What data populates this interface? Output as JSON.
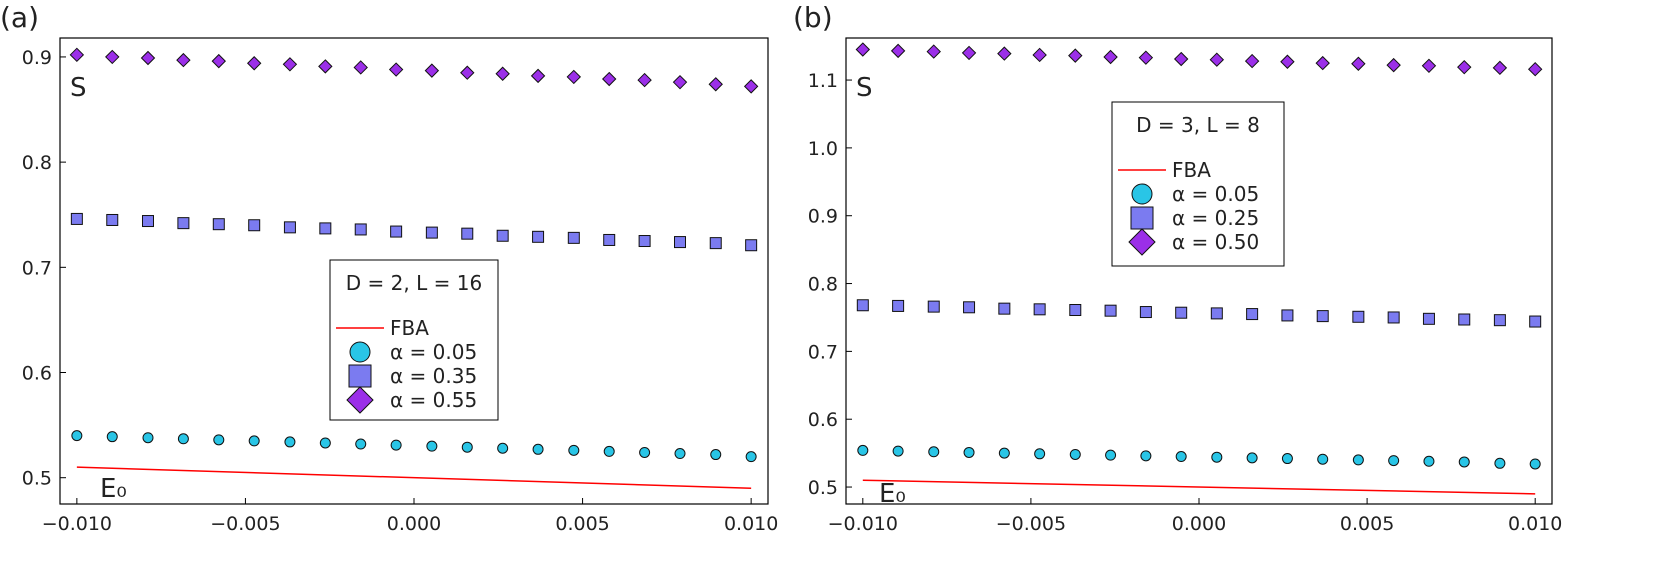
{
  "chart_data": [
    {
      "panel_label": "(a)",
      "type": "scatter",
      "annotations": {
        "ylabel": "S",
        "xlabel": "E₀"
      },
      "xlim": [
        -0.0105,
        0.0105
      ],
      "ylim": [
        0.475,
        0.918
      ],
      "xticks": [
        -0.01,
        -0.005,
        0.0,
        0.005,
        0.01
      ],
      "xtick_labels": [
        "−0.010",
        "−0.005",
        "0.000",
        "0.005",
        "0.010"
      ],
      "yticks": [
        0.5,
        0.6,
        0.7,
        0.8,
        0.9
      ],
      "ytick_labels": [
        "0.5",
        "0.6",
        "0.7",
        "0.8",
        "0.9"
      ],
      "grid": false,
      "legend": {
        "title": "D = 2, L = 16"
      },
      "series": [
        {
          "name": "FBA",
          "kind": "line",
          "color": "#ff0000",
          "x": [
            -0.01,
            0.01
          ],
          "y": [
            0.51,
            0.49
          ]
        },
        {
          "name": "α = 0.05",
          "kind": "scatter",
          "marker": "circle",
          "color": "#29c5e6",
          "x": [
            -0.01,
            -0.00895,
            -0.00789,
            -0.00684,
            -0.00579,
            -0.00474,
            -0.00368,
            -0.00263,
            -0.00158,
            -0.00053,
            0.00053,
            0.00158,
            0.00263,
            0.00368,
            0.00474,
            0.00579,
            0.00684,
            0.00789,
            0.00895,
            0.01
          ],
          "y": [
            0.54,
            0.539,
            0.538,
            0.537,
            0.536,
            0.535,
            0.534,
            0.533,
            0.532,
            0.531,
            0.53,
            0.529,
            0.528,
            0.527,
            0.526,
            0.525,
            0.524,
            0.523,
            0.522,
            0.52
          ]
        },
        {
          "name": "α = 0.35",
          "kind": "scatter",
          "marker": "square",
          "color": "#7b7bf0",
          "x": [
            -0.01,
            -0.00895,
            -0.00789,
            -0.00684,
            -0.00579,
            -0.00474,
            -0.00368,
            -0.00263,
            -0.00158,
            -0.00053,
            0.00053,
            0.00158,
            0.00263,
            0.00368,
            0.00474,
            0.00579,
            0.00684,
            0.00789,
            0.00895,
            0.01
          ],
          "y": [
            0.746,
            0.745,
            0.744,
            0.742,
            0.741,
            0.74,
            0.738,
            0.737,
            0.736,
            0.734,
            0.733,
            0.732,
            0.73,
            0.729,
            0.728,
            0.726,
            0.725,
            0.724,
            0.723,
            0.721
          ]
        },
        {
          "name": "α = 0.55",
          "kind": "scatter",
          "marker": "diamond",
          "color": "#9b2fe8",
          "x": [
            -0.01,
            -0.00895,
            -0.00789,
            -0.00684,
            -0.00579,
            -0.00474,
            -0.00368,
            -0.00263,
            -0.00158,
            -0.00053,
            0.00053,
            0.00158,
            0.00263,
            0.00368,
            0.00474,
            0.00579,
            0.00684,
            0.00789,
            0.00895,
            0.01
          ],
          "y": [
            0.902,
            0.9,
            0.899,
            0.897,
            0.896,
            0.894,
            0.893,
            0.891,
            0.89,
            0.888,
            0.887,
            0.885,
            0.884,
            0.882,
            0.881,
            0.879,
            0.878,
            0.876,
            0.874,
            0.872
          ]
        }
      ]
    },
    {
      "panel_label": "(b)",
      "type": "scatter",
      "annotations": {
        "ylabel": "S",
        "xlabel": "E₀"
      },
      "xlim": [
        -0.0105,
        0.0105
      ],
      "ylim": [
        0.475,
        1.162
      ],
      "xticks": [
        -0.01,
        -0.005,
        0.0,
        0.005,
        0.01
      ],
      "xtick_labels": [
        "−0.010",
        "−0.005",
        "0.000",
        "0.005",
        "0.010"
      ],
      "yticks": [
        0.5,
        0.6,
        0.7,
        0.8,
        0.9,
        1.0,
        1.1
      ],
      "ytick_labels": [
        "0.5",
        "0.6",
        "0.7",
        "0.8",
        "0.9",
        "1.0",
        "1.1"
      ],
      "grid": false,
      "legend": {
        "title": "D = 3, L = 8"
      },
      "series": [
        {
          "name": "FBA",
          "kind": "line",
          "color": "#ff0000",
          "x": [
            -0.01,
            0.01
          ],
          "y": [
            0.51,
            0.49
          ]
        },
        {
          "name": "α = 0.05",
          "kind": "scatter",
          "marker": "circle",
          "color": "#29c5e6",
          "x": [
            -0.01,
            -0.00895,
            -0.00789,
            -0.00684,
            -0.00579,
            -0.00474,
            -0.00368,
            -0.00263,
            -0.00158,
            -0.00053,
            0.00053,
            0.00158,
            0.00263,
            0.00368,
            0.00474,
            0.00579,
            0.00684,
            0.00789,
            0.00895,
            0.01
          ],
          "y": [
            0.554,
            0.553,
            0.552,
            0.551,
            0.55,
            0.549,
            0.548,
            0.547,
            0.546,
            0.545,
            0.544,
            0.543,
            0.542,
            0.541,
            0.54,
            0.539,
            0.538,
            0.537,
            0.535,
            0.534
          ]
        },
        {
          "name": "α = 0.25",
          "kind": "scatter",
          "marker": "square",
          "color": "#7b7bf0",
          "x": [
            -0.01,
            -0.00895,
            -0.00789,
            -0.00684,
            -0.00579,
            -0.00474,
            -0.00368,
            -0.00263,
            -0.00158,
            -0.00053,
            0.00053,
            0.00158,
            0.00263,
            0.00368,
            0.00474,
            0.00579,
            0.00684,
            0.00789,
            0.00895,
            0.01
          ],
          "y": [
            0.768,
            0.767,
            0.766,
            0.765,
            0.763,
            0.762,
            0.761,
            0.76,
            0.758,
            0.757,
            0.756,
            0.755,
            0.753,
            0.752,
            0.751,
            0.75,
            0.748,
            0.747,
            0.746,
            0.744
          ]
        },
        {
          "name": "α = 0.50",
          "kind": "scatter",
          "marker": "diamond",
          "color": "#9b2fe8",
          "x": [
            -0.01,
            -0.00895,
            -0.00789,
            -0.00684,
            -0.00579,
            -0.00474,
            -0.00368,
            -0.00263,
            -0.00158,
            -0.00053,
            0.00053,
            0.00158,
            0.00263,
            0.00368,
            0.00474,
            0.00579,
            0.00684,
            0.00789,
            0.00895,
            0.01
          ],
          "y": [
            1.145,
            1.143,
            1.142,
            1.14,
            1.139,
            1.137,
            1.136,
            1.134,
            1.133,
            1.131,
            1.13,
            1.128,
            1.127,
            1.125,
            1.124,
            1.122,
            1.121,
            1.119,
            1.118,
            1.116
          ]
        }
      ]
    }
  ]
}
